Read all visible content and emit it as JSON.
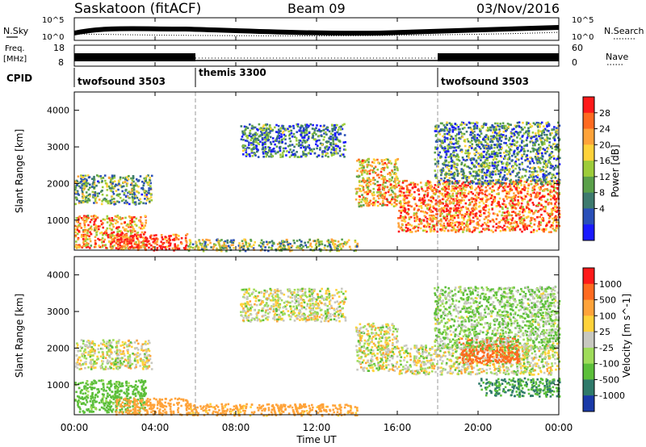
{
  "header": {
    "station": "Saskatoon (fitACF)",
    "beam": "Beam 09",
    "date": "03/Nov/2016"
  },
  "status_panels": {
    "nsky": {
      "label": "N.Sky",
      "ticks": [
        "10^5",
        "10^0"
      ]
    },
    "nsearch": {
      "label": "N.Search",
      "ticks": [
        "10^5",
        "10^0"
      ]
    },
    "freq": {
      "label_top": "Freq.",
      "label_bottom": "[MHz]",
      "ticks": [
        "18",
        "8"
      ]
    },
    "nave": {
      "label": "Nave",
      "ticks": [
        "60",
        "0"
      ]
    },
    "cpid": {
      "label": "CPID",
      "segments": [
        {
          "name": "twofsound 3503",
          "start_hour": 0,
          "end_hour": 6
        },
        {
          "name": "themis 3300",
          "start_hour": 6,
          "end_hour": 18
        },
        {
          "name": "twofsound 3503",
          "start_hour": 18,
          "end_hour": 24
        }
      ]
    }
  },
  "axes": {
    "x_label": "Time UT",
    "x_ticks": [
      "00:00",
      "04:00",
      "08:00",
      "12:00",
      "16:00",
      "20:00",
      "00:00"
    ],
    "y_label": "Slant Range [km]",
    "y_ticks": [
      "1000",
      "2000",
      "3000",
      "4000"
    ],
    "y_range_km": [
      180,
      4500
    ],
    "x_range_hours": [
      0,
      24
    ]
  },
  "chart_data": [
    {
      "type": "heatmap",
      "title": "Power",
      "colorbar_label": "Power [dB]",
      "colorbar_ticks": [
        "4",
        "8",
        "12",
        "16",
        "20",
        "24",
        "28"
      ],
      "colorbar_range": [
        0,
        30
      ],
      "colors": [
        "#1a1aff",
        "#2a4fb8",
        "#3d7a6e",
        "#5aa04a",
        "#9dcc3a",
        "#ffd23a",
        "#ffa33a",
        "#ff6a20",
        "#ff1a1a"
      ],
      "regions": [
        {
          "hours": [
            0.0,
            3.8
          ],
          "range_km": [
            1450,
            2250
          ],
          "power_db": 12
        },
        {
          "hours": [
            0.0,
            3.5
          ],
          "range_km": [
            250,
            1150
          ],
          "power_db": 22
        },
        {
          "hours": [
            2.0,
            5.6
          ],
          "range_km": [
            200,
            650
          ],
          "power_db": 28
        },
        {
          "hours": [
            5.6,
            14.0
          ],
          "range_km": [
            180,
            500
          ],
          "power_db": 14
        },
        {
          "hours": [
            8.2,
            13.4
          ],
          "range_km": [
            2750,
            3650
          ],
          "power_db": 8
        },
        {
          "hours": [
            13.9,
            16.0
          ],
          "range_km": [
            1400,
            2700
          ],
          "power_db": 20
        },
        {
          "hours": [
            16.0,
            24.0
          ],
          "range_km": [
            700,
            2100
          ],
          "power_db": 24
        },
        {
          "hours": [
            17.8,
            24.0
          ],
          "range_km": [
            2000,
            3700
          ],
          "power_db": 10
        }
      ]
    },
    {
      "type": "heatmap",
      "title": "Velocity",
      "colorbar_label": "Velocity [m s^-1]",
      "colorbar_ticks": [
        "1000",
        "500",
        "100",
        "25",
        "-25",
        "-100",
        "-500",
        "-1000"
      ],
      "colors": [
        "#1a3aa8",
        "#2f7a6a",
        "#5cbf3a",
        "#9fdc5a",
        "#c8c8c0",
        "#ffd23a",
        "#ffa33a",
        "#ff6a20",
        "#ff1a1a"
      ],
      "regions": [
        {
          "hours": [
            0.0,
            3.8
          ],
          "range_km": [
            1450,
            2250
          ],
          "velocity_ms": 0
        },
        {
          "hours": [
            0.0,
            3.5
          ],
          "range_km": [
            250,
            1150
          ],
          "velocity_ms": 120
        },
        {
          "hours": [
            2.0,
            5.6
          ],
          "range_km": [
            200,
            650
          ],
          "velocity_ms": -150
        },
        {
          "hours": [
            5.6,
            14.0
          ],
          "range_km": [
            180,
            500
          ],
          "velocity_ms": -120
        },
        {
          "hours": [
            8.2,
            13.4
          ],
          "range_km": [
            2750,
            3650
          ],
          "velocity_ms": 0
        },
        {
          "hours": [
            13.9,
            16.0
          ],
          "range_km": [
            1400,
            2700
          ],
          "velocity_ms": 0
        },
        {
          "hours": [
            16.0,
            24.0
          ],
          "range_km": [
            1300,
            2100
          ],
          "velocity_ms": 0
        },
        {
          "hours": [
            19.0,
            22.0
          ],
          "range_km": [
            1600,
            2300
          ],
          "velocity_ms": -500
        },
        {
          "hours": [
            20.0,
            24.0
          ],
          "range_km": [
            700,
            1200
          ],
          "velocity_ms": 300
        },
        {
          "hours": [
            17.8,
            24.0
          ],
          "range_km": [
            2000,
            3700
          ],
          "velocity_ms": 50
        }
      ]
    }
  ]
}
